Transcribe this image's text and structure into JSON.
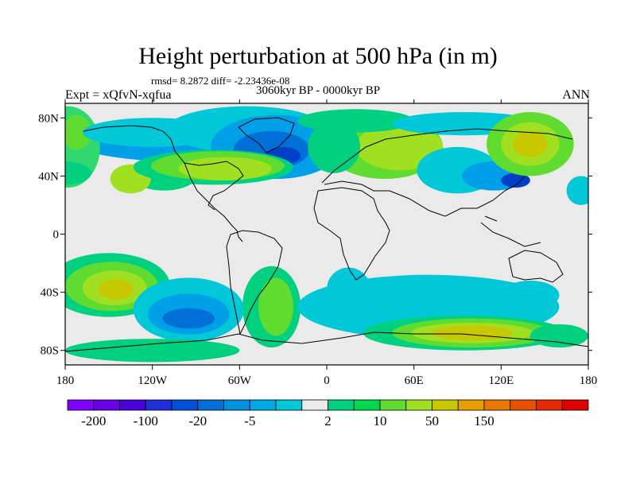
{
  "figure": {
    "title": "Height perturbation at 500 hPa (in m)",
    "stats": "rmsd= 8.2872  diff= -2.23436e-08",
    "left_label": "Expt = xQfvN-xqfua",
    "center_label": "3060kyr BP - 0000kyr BP",
    "right_label": "ANN"
  },
  "map": {
    "projection": "cylindrical-equidistant",
    "lon_range": [
      -180,
      180
    ],
    "lat_range": [
      -90,
      90
    ],
    "x_ticks": [
      {
        "value": -180,
        "label": "180"
      },
      {
        "value": -120,
        "label": "120W"
      },
      {
        "value": -60,
        "label": "60W"
      },
      {
        "value": 0,
        "label": "0"
      },
      {
        "value": 60,
        "label": "60E"
      },
      {
        "value": 120,
        "label": "120E"
      },
      {
        "value": 180,
        "label": "180"
      }
    ],
    "y_ticks": [
      {
        "value": 80,
        "label": "80N"
      },
      {
        "value": 40,
        "label": "40N"
      },
      {
        "value": 0,
        "label": "0"
      },
      {
        "value": -40,
        "label": "40S"
      },
      {
        "value": -80,
        "label": "80S"
      }
    ],
    "field_blobs": [
      {
        "lon": -100,
        "lat": 62,
        "rl": 70,
        "rt": 12,
        "color": "#00a0e8"
      },
      {
        "lon": -112,
        "lat": 42,
        "rl": 24,
        "rt": 12,
        "color": "#00d080"
      },
      {
        "lon": -135,
        "lat": 38,
        "rl": 14,
        "rt": 10,
        "color": "#a0e020"
      },
      {
        "lon": -178,
        "lat": 60,
        "rl": 22,
        "rt": 28,
        "color": "#30d870"
      },
      {
        "lon": -172,
        "lat": 70,
        "rl": 10,
        "rt": 12,
        "color": "#60dc30"
      },
      {
        "lon": -180,
        "lat": 42,
        "rl": 18,
        "rt": 8,
        "color": "#00d080"
      },
      {
        "lon": -120,
        "lat": 70,
        "rl": 48,
        "rt": 10,
        "color": "#00c8d8"
      },
      {
        "lon": -55,
        "lat": 72,
        "rl": 55,
        "rt": 16,
        "color": "#00c8d8"
      },
      {
        "lon": -35,
        "lat": 60,
        "rl": 45,
        "rt": 22,
        "color": "#00a0e8"
      },
      {
        "lon": -38,
        "lat": 58,
        "rl": 26,
        "rt": 13,
        "color": "#0070d8"
      },
      {
        "lon": -30,
        "lat": 54,
        "rl": 12,
        "rt": 6,
        "color": "#0040c8"
      },
      {
        "lon": -78,
        "lat": 46,
        "rl": 55,
        "rt": 12,
        "color": "#00d080"
      },
      {
        "lon": -75,
        "lat": 47,
        "rl": 46,
        "rt": 10,
        "color": "#60dc30"
      },
      {
        "lon": -70,
        "lat": 45,
        "rl": 32,
        "rt": 8,
        "color": "#a0e020"
      },
      {
        "lon": 40,
        "lat": 60,
        "rl": 40,
        "rt": 22,
        "color": "#60dc30"
      },
      {
        "lon": 50,
        "lat": 60,
        "rl": 30,
        "rt": 16,
        "color": "#a0e020"
      },
      {
        "lon": 20,
        "lat": 78,
        "rl": 40,
        "rt": 8,
        "color": "#00d080"
      },
      {
        "lon": 5,
        "lat": 60,
        "rl": 18,
        "rt": 18,
        "color": "#00d080"
      },
      {
        "lon": 90,
        "lat": 44,
        "rl": 28,
        "rt": 16,
        "color": "#00c8d8"
      },
      {
        "lon": 115,
        "lat": 40,
        "rl": 22,
        "rt": 10,
        "color": "#00a0e8"
      },
      {
        "lon": 130,
        "lat": 37,
        "rl": 10,
        "rt": 5,
        "color": "#0040c8"
      },
      {
        "lon": 95,
        "lat": 76,
        "rl": 50,
        "rt": 8,
        "color": "#00c8d8"
      },
      {
        "lon": 140,
        "lat": 62,
        "rl": 30,
        "rt": 22,
        "color": "#60dc30"
      },
      {
        "lon": 140,
        "lat": 62,
        "rl": 20,
        "rt": 15,
        "color": "#a0e020"
      },
      {
        "lon": 140,
        "lat": 62,
        "rl": 12,
        "rt": 9,
        "color": "#c8c800"
      },
      {
        "lon": 175,
        "lat": 30,
        "rl": 10,
        "rt": 10,
        "color": "#00c8d8"
      },
      {
        "lon": -150,
        "lat": -35,
        "rl": 42,
        "rt": 22,
        "color": "#00d080"
      },
      {
        "lon": -148,
        "lat": -36,
        "rl": 32,
        "rt": 17,
        "color": "#60dc30"
      },
      {
        "lon": -146,
        "lat": -37,
        "rl": 22,
        "rt": 12,
        "color": "#a0e020"
      },
      {
        "lon": -145,
        "lat": -38,
        "rl": 12,
        "rt": 7,
        "color": "#c8c800"
      },
      {
        "lon": -95,
        "lat": -52,
        "rl": 38,
        "rt": 22,
        "color": "#00c8d8"
      },
      {
        "lon": -95,
        "lat": -55,
        "rl": 28,
        "rt": 14,
        "color": "#00a0e8"
      },
      {
        "lon": -95,
        "lat": -58,
        "rl": 18,
        "rt": 7,
        "color": "#0070d8"
      },
      {
        "lon": -38,
        "lat": -50,
        "rl": 20,
        "rt": 28,
        "color": "#00d080"
      },
      {
        "lon": -35,
        "lat": -50,
        "rl": 12,
        "rt": 20,
        "color": "#60dc30"
      },
      {
        "lon": 15,
        "lat": -38,
        "rl": 15,
        "rt": 15,
        "color": "#00c8d8"
      },
      {
        "lon": 70,
        "lat": -50,
        "rl": 90,
        "rt": 22,
        "color": "#00c8d8"
      },
      {
        "lon": 95,
        "lat": -68,
        "rl": 70,
        "rt": 12,
        "color": "#00d080"
      },
      {
        "lon": 100,
        "lat": -68,
        "rl": 55,
        "rt": 10,
        "color": "#60dc30"
      },
      {
        "lon": 100,
        "lat": -68,
        "rl": 42,
        "rt": 7,
        "color": "#a0e020"
      },
      {
        "lon": 100,
        "lat": -68,
        "rl": 28,
        "rt": 5,
        "color": "#c8c800"
      },
      {
        "lon": 160,
        "lat": -70,
        "rl": 20,
        "rt": 8,
        "color": "#00d080"
      },
      {
        "lon": 140,
        "lat": -42,
        "rl": 20,
        "rt": 10,
        "color": "#00c8d8"
      },
      {
        "lon": -120,
        "lat": -80,
        "rl": 60,
        "rt": 8,
        "color": "#00d080"
      }
    ]
  },
  "colorbar": {
    "colors": [
      "#8000ff",
      "#6a00e8",
      "#4a00d8",
      "#2030d8",
      "#0050d8",
      "#0070d8",
      "#0090e0",
      "#00a8e8",
      "#00c8d8",
      "#eaeaea",
      "#00d080",
      "#00d850",
      "#60dc30",
      "#a0e020",
      "#c8c800",
      "#e8a000",
      "#e87800",
      "#e85000",
      "#e82800",
      "#e00000"
    ],
    "labels": [
      {
        "boundary": 1,
        "text": "-200"
      },
      {
        "boundary": 3,
        "text": "-100"
      },
      {
        "boundary": 5,
        "text": "-20"
      },
      {
        "boundary": 7,
        "text": "-5"
      },
      {
        "boundary": 10,
        "text": "2"
      },
      {
        "boundary": 12,
        "text": "10"
      },
      {
        "boundary": 14,
        "text": "50"
      },
      {
        "boundary": 16,
        "text": "150"
      }
    ]
  }
}
